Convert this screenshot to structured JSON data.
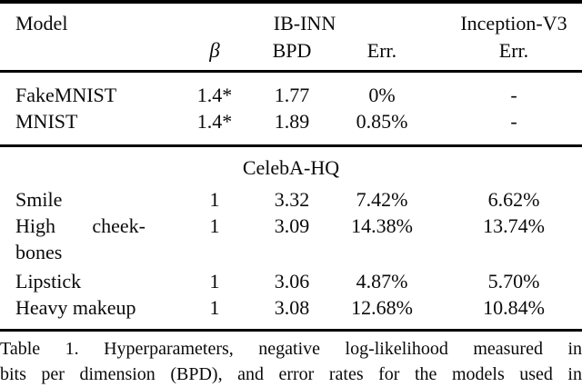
{
  "table": {
    "header": {
      "model_label": "Model",
      "group_ibinn": "IB-INN",
      "group_inception": "Inception-V3",
      "sub_beta": "β",
      "sub_bpd": "BPD",
      "sub_err": "Err.",
      "sub_inception_err": "Err."
    },
    "sections": [
      {
        "name": "mnist",
        "rows": [
          {
            "model": "FakeMNIST",
            "beta": "1.4*",
            "bpd": "1.77",
            "err": "0%",
            "inception_err": "-"
          },
          {
            "model": "MNIST",
            "beta": "1.4*",
            "bpd": "1.89",
            "err": "0.85%",
            "inception_err": "-"
          }
        ]
      },
      {
        "name": "celeba",
        "title": "CelebA-HQ",
        "rows": [
          {
            "model": "Smile",
            "beta": "1",
            "bpd": "3.32",
            "err": "7.42%",
            "inception_err": "6.62%"
          },
          {
            "model": "High cheek-bones",
            "beta": "1",
            "bpd": "3.09",
            "err": "14.38%",
            "inception_err": "13.74%"
          },
          {
            "model": "Lipstick",
            "beta": "1",
            "bpd": "3.06",
            "err": "4.87%",
            "inception_err": "5.70%"
          },
          {
            "model": "Heavy makeup",
            "beta": "1",
            "bpd": "3.08",
            "err": "12.68%",
            "inception_err": "10.84%"
          }
        ]
      }
    ]
  },
  "caption": {
    "lines": [
      "Table 1. Hyperparameters, negative log-likelihood measured in",
      "bits per dimension (BPD), and error rates for the models used in"
    ]
  },
  "colors": {
    "text": "#0a0a0a",
    "rule": "#000000",
    "background": "#ffffff"
  }
}
